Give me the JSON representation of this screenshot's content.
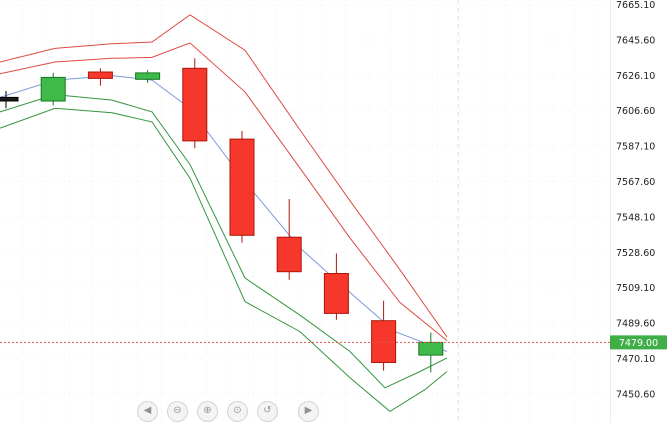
{
  "chart_data": {
    "type": "candlestick",
    "title": "",
    "ylim": [
      7435,
      7668
    ],
    "grid": true,
    "y_axis": {
      "side": "right",
      "tick_step": 19.5,
      "ticks": [
        7665.1,
        7645.6,
        7626.1,
        7606.6,
        7587.1,
        7567.6,
        7548.1,
        7528.6,
        7509.1,
        7489.6,
        7470.1,
        7450.6
      ]
    },
    "last_price": 7479.0,
    "last_price_display": "7479.00",
    "candles": [
      {
        "dir": "neutral",
        "open": 7614.0,
        "high": 7617.5,
        "low": 7608.0,
        "close": 7612.0
      },
      {
        "dir": "up",
        "open": 7612.0,
        "high": 7627.5,
        "low": 7609.5,
        "close": 7625.0
      },
      {
        "dir": "down",
        "open": 7628.0,
        "high": 7630.0,
        "low": 7620.5,
        "close": 7624.5
      },
      {
        "dir": "up",
        "open": 7624.0,
        "high": 7629.0,
        "low": 7622.0,
        "close": 7627.5
      },
      {
        "dir": "down",
        "open": 7630.0,
        "high": 7635.5,
        "low": 7586.0,
        "close": 7590.0
      },
      {
        "dir": "down",
        "open": 7591.0,
        "high": 7595.5,
        "low": 7534.0,
        "close": 7538.0
      },
      {
        "dir": "down",
        "open": 7537.0,
        "high": 7558.0,
        "low": 7513.5,
        "close": 7518.0
      },
      {
        "dir": "down",
        "open": 7517.0,
        "high": 7528.0,
        "low": 7491.5,
        "close": 7495.0
      },
      {
        "dir": "down",
        "open": 7491.0,
        "high": 7502.0,
        "low": 7463.5,
        "close": 7468.0
      },
      {
        "dir": "up",
        "open": 7472.0,
        "high": 7484.5,
        "low": 7462.5,
        "close": 7479.0
      }
    ],
    "overlays": [
      {
        "name": "upper-band-outer",
        "color": "#e04a42",
        "points": [
          [
            0,
            7633.5
          ],
          [
            55,
            7641
          ],
          [
            112,
            7643.5
          ],
          [
            152,
            7644.5
          ],
          [
            190,
            7659.5
          ],
          [
            245,
            7640
          ],
          [
            300,
            7596
          ],
          [
            350,
            7557
          ],
          [
            400,
            7519
          ],
          [
            447,
            7482
          ]
        ]
      },
      {
        "name": "upper-band-inner",
        "color": "#e04a42",
        "points": [
          [
            0,
            7627
          ],
          [
            55,
            7633.5
          ],
          [
            112,
            7635.5
          ],
          [
            152,
            7636
          ],
          [
            190,
            7644
          ],
          [
            245,
            7617
          ],
          [
            300,
            7575
          ],
          [
            350,
            7536.5
          ],
          [
            400,
            7501
          ],
          [
            447,
            7480
          ]
        ]
      },
      {
        "name": "moving-average-mid",
        "color": "#7f9bdb",
        "points": [
          [
            0,
            7614
          ],
          [
            55,
            7623.5
          ],
          [
            112,
            7626
          ],
          [
            152,
            7623.5
          ],
          [
            190,
            7608
          ],
          [
            245,
            7567.5
          ],
          [
            300,
            7531
          ],
          [
            350,
            7506.5
          ],
          [
            395,
            7485
          ],
          [
            447,
            7474
          ]
        ]
      },
      {
        "name": "lower-band-inner",
        "color": "#35953f",
        "points": [
          [
            0,
            7606
          ],
          [
            55,
            7615.5
          ],
          [
            112,
            7612.5
          ],
          [
            152,
            7606
          ],
          [
            190,
            7577
          ],
          [
            245,
            7514.5
          ],
          [
            300,
            7494
          ],
          [
            350,
            7474
          ],
          [
            385,
            7454
          ],
          [
            420,
            7463
          ],
          [
            447,
            7470.5
          ]
        ]
      },
      {
        "name": "lower-band-outer",
        "color": "#35953f",
        "points": [
          [
            0,
            7597
          ],
          [
            55,
            7608
          ],
          [
            112,
            7605.5
          ],
          [
            152,
            7600.5
          ],
          [
            190,
            7569.5
          ],
          [
            245,
            7501.5
          ],
          [
            300,
            7485
          ],
          [
            350,
            7459.5
          ],
          [
            390,
            7441
          ],
          [
            425,
            7453
          ],
          [
            447,
            7463
          ]
        ]
      }
    ],
    "colors": {
      "up": "#3fb949",
      "up_border": "#157a1f",
      "down": "#f5372c",
      "down_border": "#b01508",
      "neutral": "#1a1a1a",
      "neutral_border": "#000000",
      "price_line": "#e4564a",
      "price_tag_bg": "#3fae47",
      "price_tag_text": "#ffffff",
      "axis_text": "#222222"
    }
  },
  "toolbar": {
    "buttons": [
      {
        "name": "pan-left",
        "glyph": "◀"
      },
      {
        "name": "zoom-out",
        "glyph": "⊖"
      },
      {
        "name": "zoom-in",
        "glyph": "⊕"
      },
      {
        "name": "zoom-selection",
        "glyph": "⊙"
      },
      {
        "name": "zoom-reset",
        "glyph": "↺"
      },
      {
        "name": "pan-right",
        "glyph": "▶"
      }
    ]
  }
}
